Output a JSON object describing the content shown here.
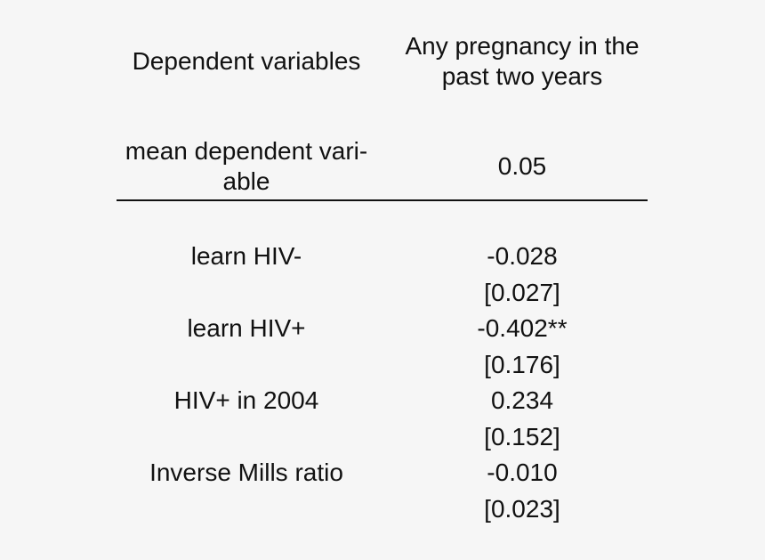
{
  "header": {
    "dependent_label": "Dependent variables",
    "outcome_line1": "Any pregnancy in the",
    "outcome_line2": "past two years"
  },
  "mean_row": {
    "label_line1": "mean dependent vari-",
    "label_line2": "able",
    "value": "0.05"
  },
  "rows": [
    {
      "label": "learn HIV-",
      "coef": "-0.028",
      "se": "[0.027]"
    },
    {
      "label": "learn HIV+",
      "coef": "-0.402**",
      "se": "[0.176]"
    },
    {
      "label": "HIV+ in 2004",
      "coef": "0.234",
      "se": "[0.152]"
    },
    {
      "label": "Inverse Mills ratio",
      "coef": "-0.010",
      "se": "[0.023]"
    }
  ]
}
